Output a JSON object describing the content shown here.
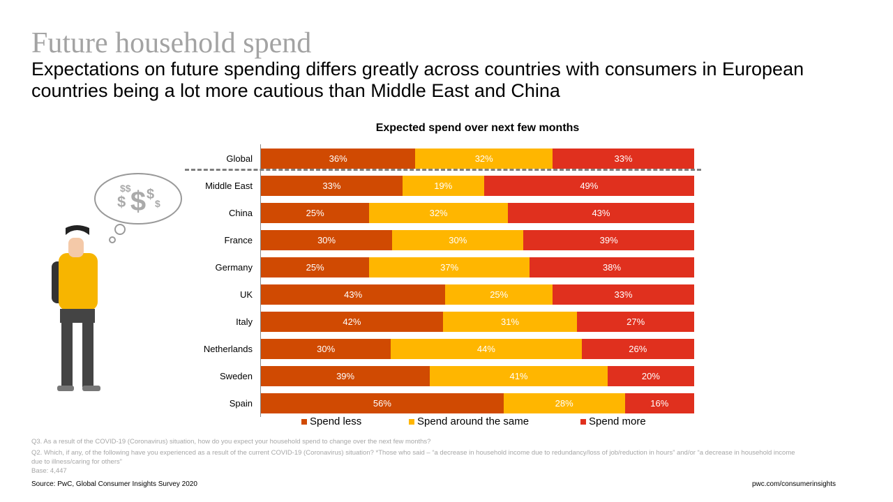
{
  "header": {
    "title": "Future household spend",
    "subtitle": "Expectations on future spending differs greatly across countries with consumers in European countries being a lot more cautious than Middle East and China"
  },
  "chart_data": {
    "type": "bar",
    "stacked": true,
    "orientation": "horizontal",
    "title": "Expected spend over next few months",
    "categories": [
      "Global",
      "Middle East",
      "China",
      "France",
      "Germany",
      "UK",
      "Italy",
      "Netherlands",
      "Sweden",
      "Spain"
    ],
    "series": [
      {
        "name": "Spend less",
        "color": "#D04A02",
        "values": [
          36,
          33,
          25,
          30,
          25,
          43,
          42,
          30,
          39,
          56
        ]
      },
      {
        "name": "Spend around the same",
        "color": "#FFB600",
        "values": [
          32,
          19,
          32,
          30,
          37,
          25,
          31,
          44,
          41,
          28
        ]
      },
      {
        "name": "Spend more",
        "color": "#E0301E",
        "values": [
          33,
          49,
          43,
          39,
          38,
          33,
          27,
          26,
          20,
          16
        ]
      }
    ],
    "legend": "bottom",
    "unit": "%"
  },
  "notes": [
    "Q3. As a result of the COVID-19 (Coronavirus) situation, how do you expect your household spend to change over the next few months?",
    "Q2. Which, if any, of the following have you experienced as a result of the current COVID-19 (Coronavirus) situation? *Those who said – “a decrease in household income due to redundancy/loss of job/reduction in hours” and/or “a decrease in household income due to illness/caring for others”",
    "Base: 4,447"
  ],
  "footer": {
    "source": "Source: PwC, Global Consumer Insights Survey 2020",
    "link": "pwc.com/consumerinsights"
  }
}
